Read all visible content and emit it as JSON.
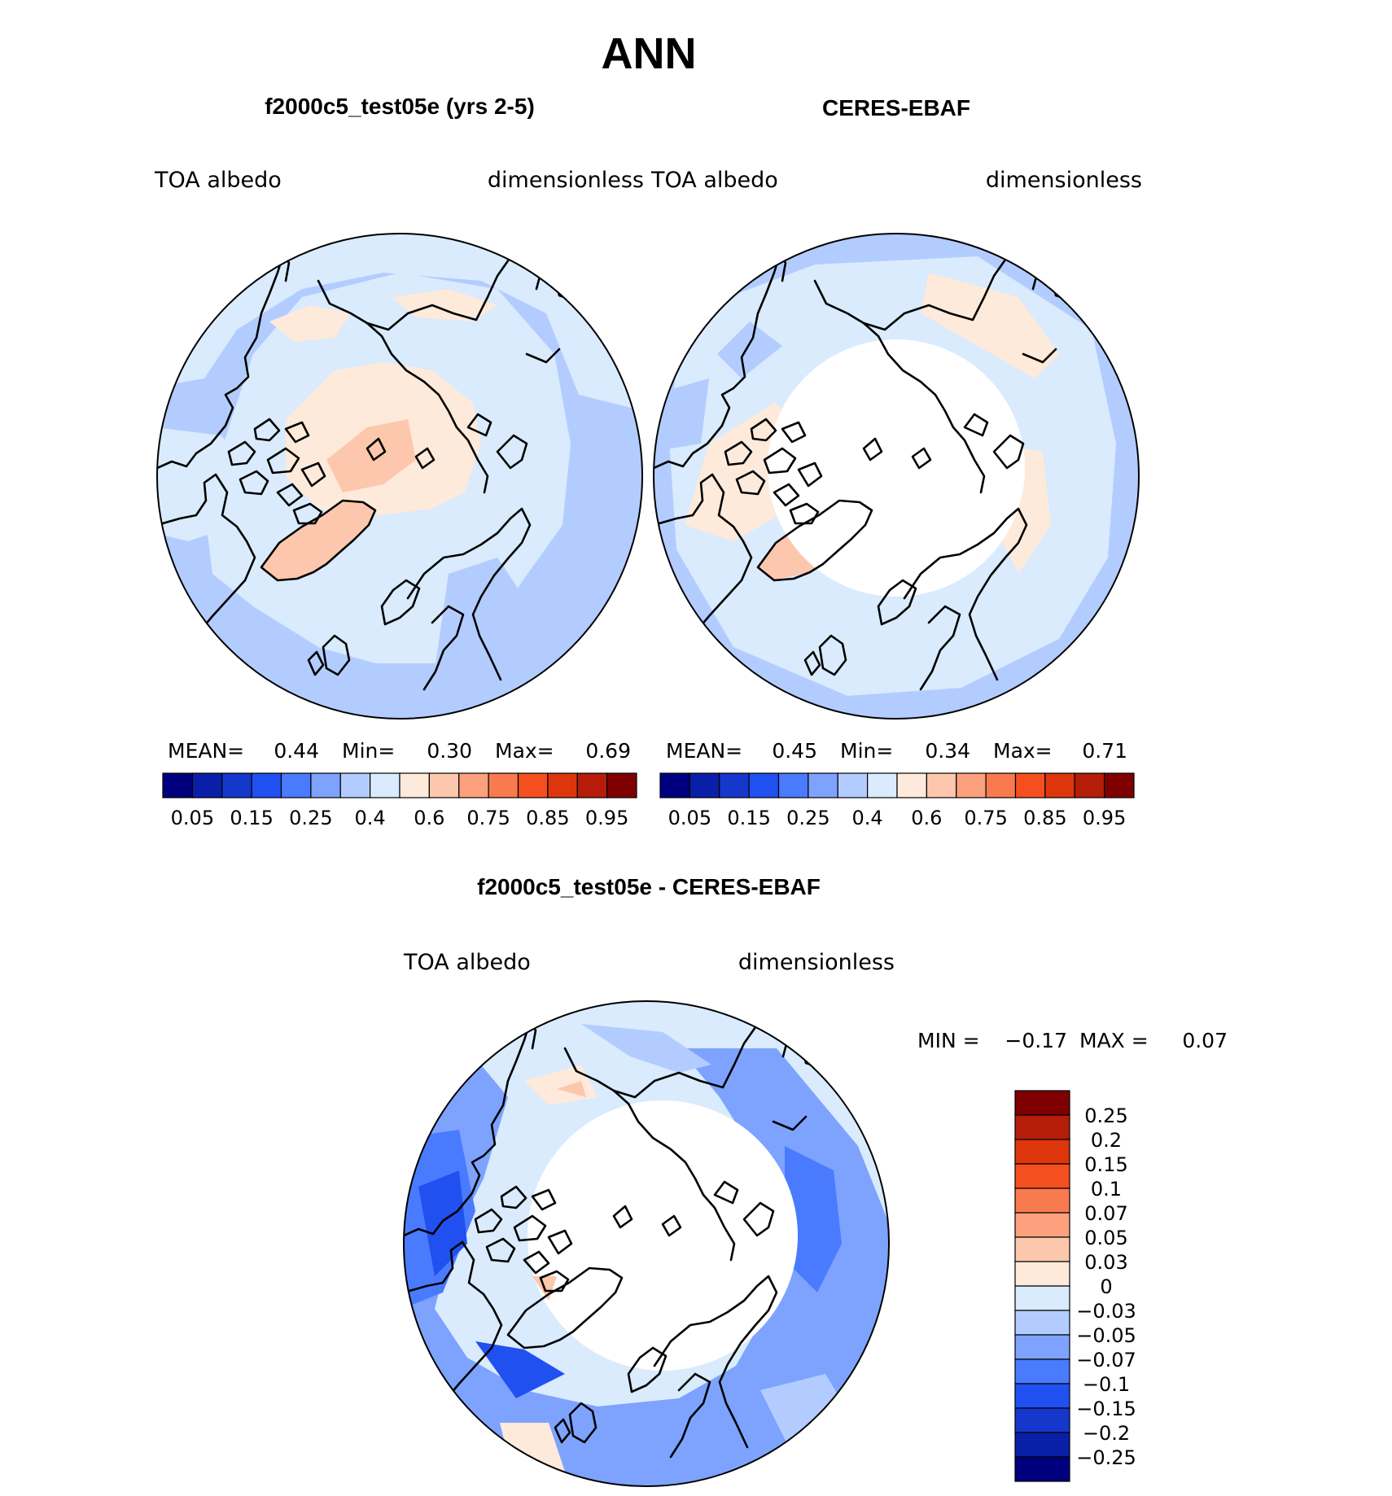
{
  "title": "ANN",
  "panels": [
    {
      "id": "model",
      "title": "f2000c5_test05e (yrs 2-5)",
      "left_label": "TOA  albedo",
      "right_label": "dimensionless",
      "stats": {
        "mean_label": "MEAN=",
        "mean": "0.44",
        "min_label": "Min=",
        "min": "0.30",
        "max_label": "Max=",
        "max": "0.69"
      }
    },
    {
      "id": "obs",
      "title": "CERES-EBAF",
      "left_label": "TOA  albedo",
      "right_label": "dimensionless",
      "stats": {
        "mean_label": "MEAN=",
        "mean": "0.45",
        "min_label": "Min=",
        "min": "0.34",
        "max_label": "Max=",
        "max": "0.71"
      }
    }
  ],
  "abs_colorbar": {
    "colors": [
      "#00007f",
      "#0a1fa8",
      "#1537cc",
      "#2050f0",
      "#4a7bff",
      "#7da3ff",
      "#b3ccff",
      "#d9ebfc",
      "#fdeadb",
      "#fcc7ad",
      "#fca07d",
      "#f97a4f",
      "#f4501f",
      "#dd360d",
      "#b51d0a",
      "#7f0000"
    ],
    "tick_labels": [
      "0.05",
      "0.15",
      "0.25",
      "0.4",
      "0.6",
      "0.75",
      "0.85",
      "0.95"
    ]
  },
  "diff_panel": {
    "title": "f2000c5_test05e - CERES-EBAF",
    "left_label": "TOA  albedo",
    "right_label": "dimensionless",
    "stats": {
      "min_label": "MIN =",
      "min": "−0.17",
      "max_label": "MAX =",
      "max": "0.07"
    }
  },
  "diff_colorbar": {
    "colors_top_to_bottom": [
      "#7f0000",
      "#b51d0a",
      "#dd360d",
      "#f4501f",
      "#f97a4f",
      "#fca07d",
      "#fcc7ad",
      "#fdeadb",
      "#d9ebfc",
      "#b3ccff",
      "#7da3ff",
      "#4a7bff",
      "#2050f0",
      "#1537cc",
      "#0a1fa8",
      "#00007f"
    ],
    "tick_labels": [
      "0.25",
      "0.2",
      "0.15",
      "0.1",
      "0.07",
      "0.05",
      "0.03",
      "0",
      "−0.03",
      "−0.05",
      "−0.07",
      "−0.1",
      "−0.15",
      "−0.2",
      "−0.25"
    ]
  }
}
